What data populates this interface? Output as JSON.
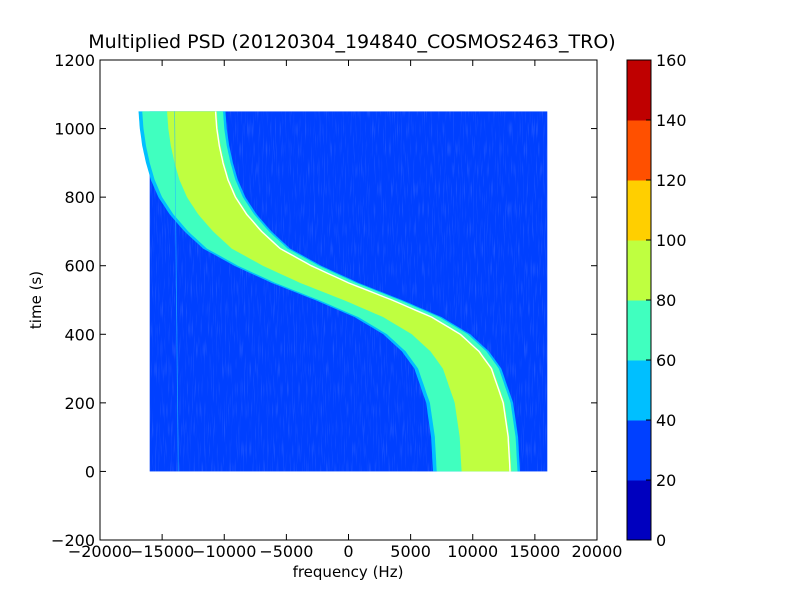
{
  "chart_data": {
    "type": "heatmap",
    "title": "Multiplied PSD (20120304_194840_COSMOS2463_TRO)",
    "xlabel": "frequency (Hz)",
    "ylabel": "time (s)",
    "xlim": [
      -20000,
      20000
    ],
    "ylim": [
      -200,
      1200
    ],
    "x_ticks": [
      "−20000",
      "−15000",
      "−10000",
      "−5000",
      "0",
      "5000",
      "10000",
      "15000",
      "20000"
    ],
    "y_ticks": [
      "−200",
      "0",
      "200",
      "400",
      "600",
      "800",
      "1000",
      "1200"
    ],
    "data_extent": {
      "x": [
        -16000,
        16000
      ],
      "y": [
        0,
        1050
      ]
    },
    "background_level_range": [
      20,
      40
    ],
    "signal_track": {
      "description_free": true,
      "time": [
        0,
        100,
        200,
        300,
        350,
        400,
        450,
        500,
        550,
        600,
        650,
        700,
        750,
        800,
        850,
        900,
        950,
        1000,
        1050
      ],
      "frequency_center": [
        13000,
        12850,
        12450,
        11500,
        10500,
        9000,
        6700,
        3500,
        0,
        -3000,
        -5500,
        -7000,
        -8200,
        -9100,
        -9700,
        -10100,
        -10400,
        -10600,
        -10700
      ]
    },
    "colorbar": {
      "min": 0,
      "max": 160,
      "ticks": [
        "0",
        "20",
        "40",
        "60",
        "80",
        "100",
        "120",
        "140",
        "160"
      ],
      "colors": [
        "#0000bf",
        "#0040ff",
        "#00bfff",
        "#40ffbf",
        "#bfff40",
        "#ffcf00",
        "#ff5000",
        "#bf0000"
      ]
    }
  }
}
